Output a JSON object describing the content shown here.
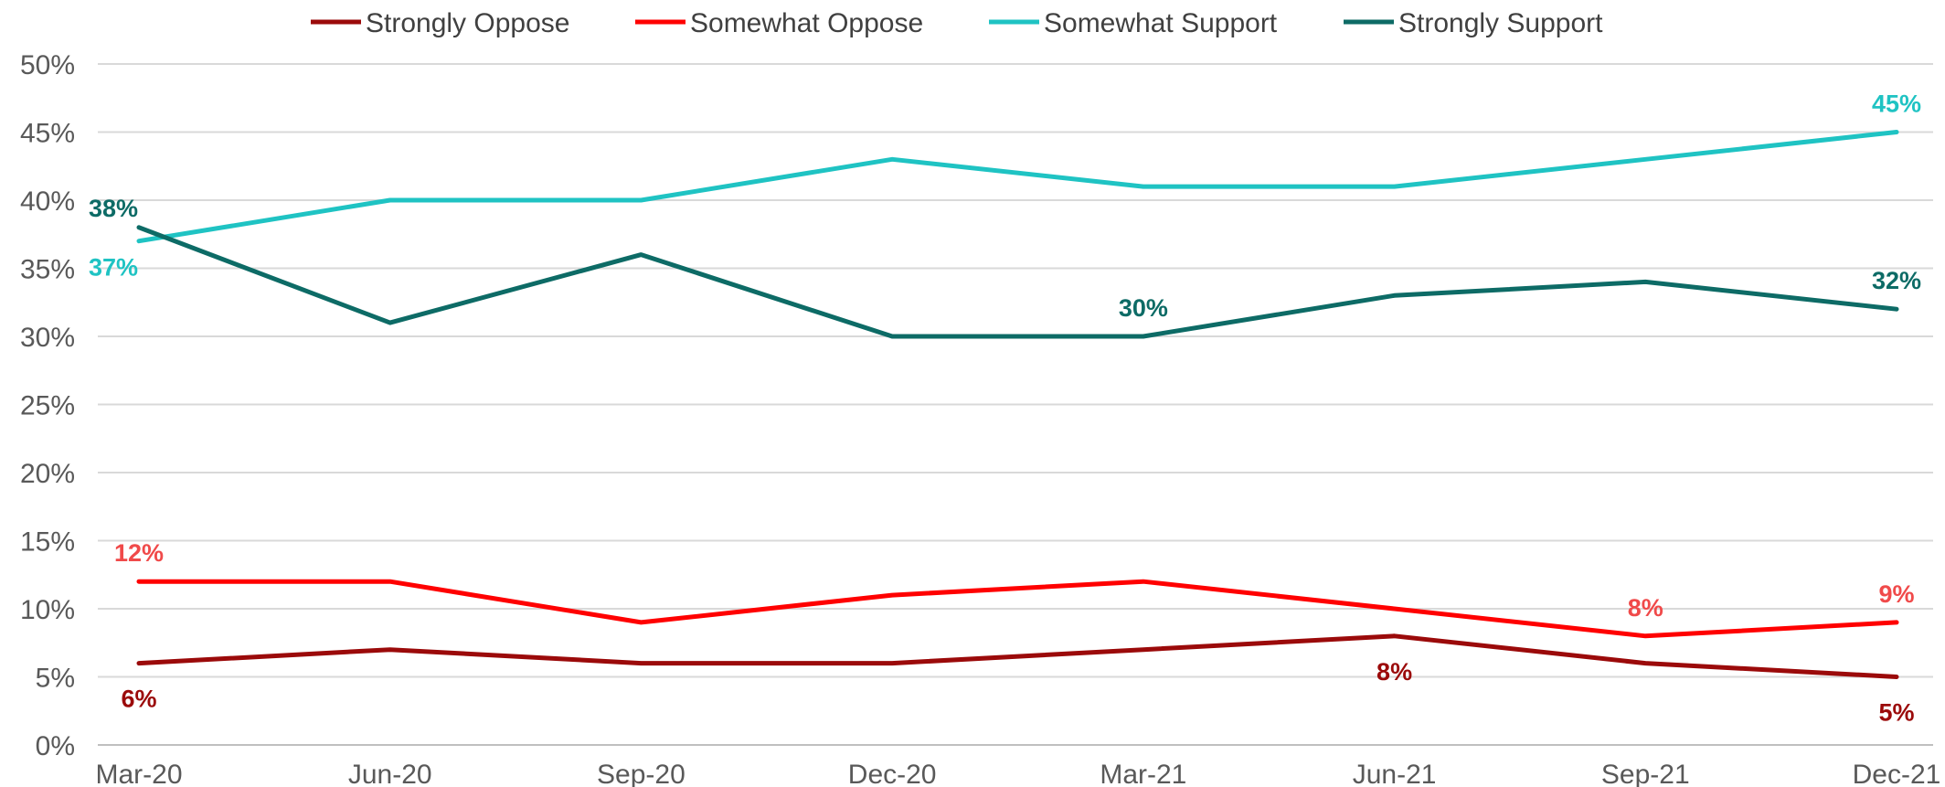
{
  "chart_data": {
    "type": "line",
    "title": "",
    "xlabel": "",
    "ylabel": "",
    "categories": [
      "Mar-20",
      "Jun-20",
      "Sep-20",
      "Dec-20",
      "Mar-21",
      "Jun-21",
      "Sep-21",
      "Dec-21"
    ],
    "y_ticks": [
      "0%",
      "5%",
      "10%",
      "15%",
      "20%",
      "25%",
      "30%",
      "35%",
      "40%",
      "45%",
      "50%"
    ],
    "ylim": [
      0,
      50
    ],
    "grid": true,
    "legend_position": "top",
    "series": [
      {
        "name": "Strongly Oppose",
        "color": "#9b0a0a",
        "values": [
          6,
          7,
          6,
          6,
          7,
          8,
          6,
          5
        ],
        "labels": [
          {
            "index": 0,
            "text": "6%",
            "position": "below"
          },
          {
            "index": 5,
            "text": "8%",
            "position": "below"
          },
          {
            "index": 7,
            "text": "5%",
            "position": "below"
          }
        ]
      },
      {
        "name": "Somewhat Oppose",
        "color": "#ff0000",
        "label_color": "#f04a4a",
        "values": [
          12,
          12,
          9,
          11,
          12,
          10,
          8,
          9
        ],
        "labels": [
          {
            "index": 0,
            "text": "12%",
            "position": "above"
          },
          {
            "index": 6,
            "text": "8%",
            "position": "above"
          },
          {
            "index": 7,
            "text": "9%",
            "position": "above"
          }
        ]
      },
      {
        "name": "Somewhat Support",
        "color": "#1fc3c3",
        "values": [
          37,
          40,
          40,
          43,
          41,
          41,
          43,
          45
        ],
        "labels": [
          {
            "index": 0,
            "text": "37%",
            "position": "below-left"
          },
          {
            "index": 7,
            "text": "45%",
            "position": "above"
          }
        ]
      },
      {
        "name": "Strongly Support",
        "color": "#0d6b66",
        "values": [
          38,
          31,
          36,
          30,
          30,
          33,
          34,
          32
        ],
        "labels": [
          {
            "index": 0,
            "text": "38%",
            "position": "above-left"
          },
          {
            "index": 4,
            "text": "30%",
            "position": "above"
          },
          {
            "index": 7,
            "text": "32%",
            "position": "above"
          }
        ]
      }
    ]
  }
}
